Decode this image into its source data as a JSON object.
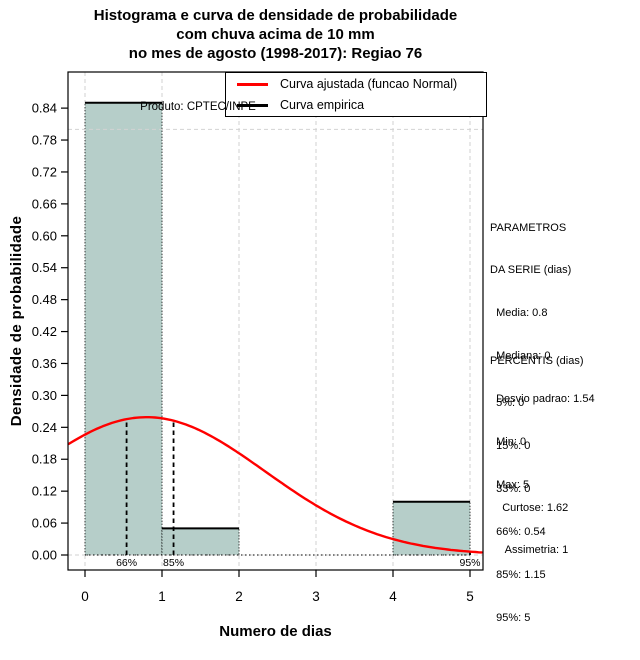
{
  "title": {
    "line1": "Histograma e curva de densidade de probabilidade",
    "line2": "com chuva acima de 10 mm",
    "line3": "no mes de agosto (1998-2017): Regiao 76"
  },
  "axes": {
    "x_label": "Numero de dias",
    "y_label": "Densidade de probabilidade"
  },
  "annotations": {
    "produto": "Produto: CPTEC/INPE"
  },
  "legend": {
    "items": [
      {
        "label": "Curva ajustada (funcao Normal)",
        "color": "#ff0000"
      },
      {
        "label": "Curva empirica",
        "color": "#000000"
      }
    ]
  },
  "side_panel": {
    "parametros": {
      "lines": [
        "PARAMETROS",
        "DA SERIE (dias)",
        "  Media: 0.8",
        "  Mediana: 0",
        "  Desvio padrao: 1.54",
        "  Min: 0",
        "  Max: 5"
      ]
    },
    "percentis": {
      "lines": [
        "PERCENTIS (dias)",
        "  5%: 0",
        "  15%: 0",
        "  33%: 0",
        "  66%: 0.54",
        "  85%: 1.15",
        "  95%: 5"
      ]
    },
    "momentos": {
      "lines": [
        "    Curtose: 1.62",
        "     Assimetria: 1"
      ]
    }
  },
  "chart_data": {
    "type": "bar",
    "subtype": "histogram-with-fitted-normal-density",
    "title": "Histograma e curva de densidade de probabilidade com chuva acima de 10 mm no mes de agosto (1998-2017): Regiao 76",
    "xlabel": "Numero de dias",
    "ylabel": "Densidade de probabilidade",
    "xlim": [
      -0.21,
      5.16
    ],
    "ylim": [
      0,
      0.9
    ],
    "x_ticks": [
      "0",
      "1",
      "2",
      "3",
      "4",
      "5"
    ],
    "y_tick_step": 0.06,
    "y_ticks": [
      "0.00",
      "0.06",
      "0.12",
      "0.18",
      "0.24",
      "0.30",
      "0.36",
      "0.42",
      "0.48",
      "0.54",
      "0.60",
      "0.66",
      "0.72",
      "0.78",
      "0.84"
    ],
    "bins": [
      {
        "x0": 0,
        "x1": 1,
        "density": 0.85
      },
      {
        "x0": 1,
        "x1": 2,
        "density": 0.05
      },
      {
        "x0": 2,
        "x1": 3,
        "density": 0.0
      },
      {
        "x0": 3,
        "x1": 4,
        "density": 0.0
      },
      {
        "x0": 4,
        "x1": 5,
        "density": 0.1
      }
    ],
    "normal_fit": {
      "mean": 0.8,
      "sd": 1.54,
      "peak_density": 0.259
    },
    "percentile_markers": [
      {
        "label": "66%",
        "x": 0.54
      },
      {
        "label": "85%",
        "x": 1.15
      },
      {
        "label": "95%",
        "x": 5
      }
    ],
    "v_gridlines": [
      0,
      1,
      2,
      3,
      4,
      5
    ],
    "h_gridlines": [
      0,
      0.8
    ],
    "grid": true,
    "legend_position": "topright",
    "colors": {
      "bar_fill": "#b6cec9",
      "bar_border": "#000000",
      "fitted_curve": "#ff0000",
      "empirical_curve": "#000000",
      "gridline": "#d2d2d2",
      "frame": "#000000"
    }
  }
}
